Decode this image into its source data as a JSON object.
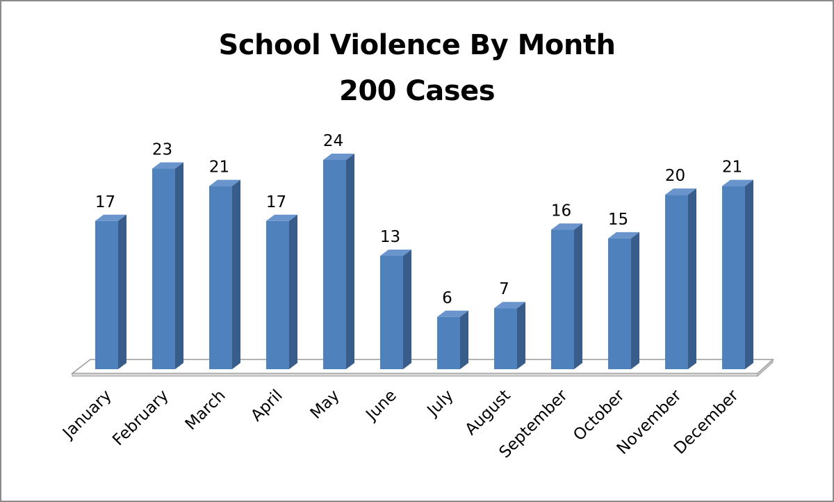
{
  "chart_data": {
    "type": "bar",
    "title": "School Violence By Month",
    "subtitle": "200 Cases",
    "categories": [
      "January",
      "February",
      "March",
      "April",
      "May",
      "June",
      "July",
      "August",
      "September",
      "October",
      "November",
      "December"
    ],
    "values": [
      17,
      23,
      21,
      17,
      24,
      13,
      6,
      7,
      16,
      15,
      20,
      21
    ],
    "ylim": [
      0,
      24
    ],
    "grid": false,
    "legend": "none",
    "colors": {
      "bar_front": "#4f81bd",
      "bar_side": "#385d8a",
      "bar_top": "#6a95cc",
      "floor": "#ffffff",
      "floor_edge": "#9a9a9a"
    }
  }
}
